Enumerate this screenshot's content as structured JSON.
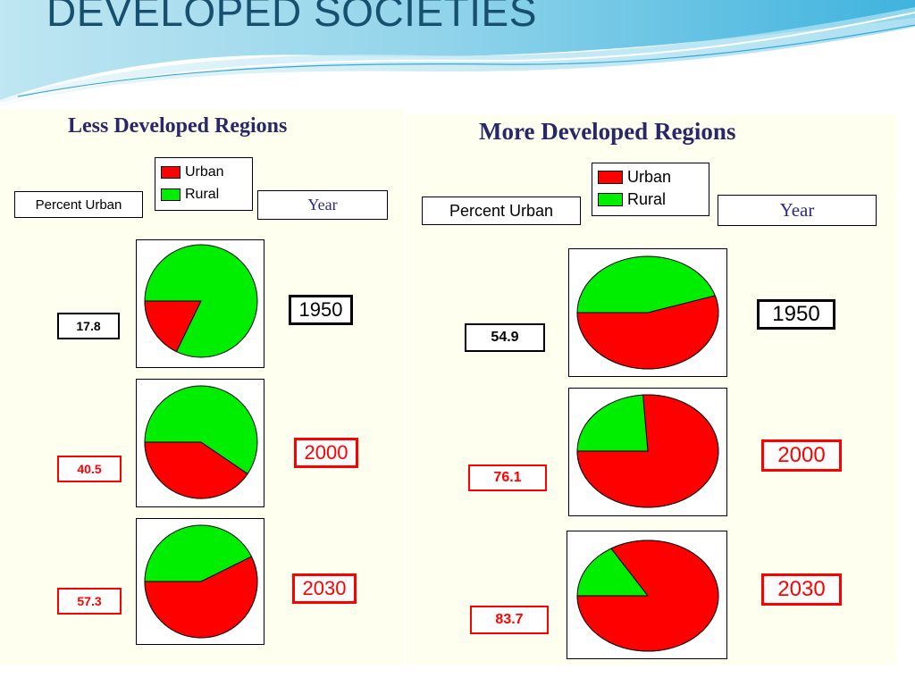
{
  "slide": {
    "title": "DEVELOPED SOCIETIES"
  },
  "colors": {
    "urban": "#ff0000",
    "rural": "#00ee00",
    "title_text": "#17506f",
    "panel_title": "#282868",
    "highlight": "#ff0000"
  },
  "legend": {
    "urban": "Urban",
    "rural": "Rural"
  },
  "labels": {
    "percent_urban": "Percent Urban",
    "year": "Year"
  },
  "chart_data": [
    {
      "type": "pie",
      "title": "Less Developed Regions",
      "series_names": [
        "Urban",
        "Rural"
      ],
      "pies": [
        {
          "year": "1950",
          "percent_urban": "17.8",
          "urban": 17.8,
          "rural": 82.2,
          "highlight": false
        },
        {
          "year": "2000",
          "percent_urban": "40.5",
          "urban": 40.5,
          "rural": 59.5,
          "highlight": true
        },
        {
          "year": "2030",
          "percent_urban": "57.3",
          "urban": 57.3,
          "rural": 42.7,
          "highlight": true
        }
      ]
    },
    {
      "type": "pie",
      "title": "More Developed Regions",
      "series_names": [
        "Urban",
        "Rural"
      ],
      "pies": [
        {
          "year": "1950",
          "percent_urban": "54.9",
          "urban": 54.9,
          "rural": 45.1,
          "highlight": false
        },
        {
          "year": "2000",
          "percent_urban": "76.1",
          "urban": 76.1,
          "rural": 23.9,
          "highlight": true
        },
        {
          "year": "2030",
          "percent_urban": "83.7",
          "urban": 83.7,
          "rural": 16.3,
          "highlight": true
        }
      ]
    }
  ]
}
